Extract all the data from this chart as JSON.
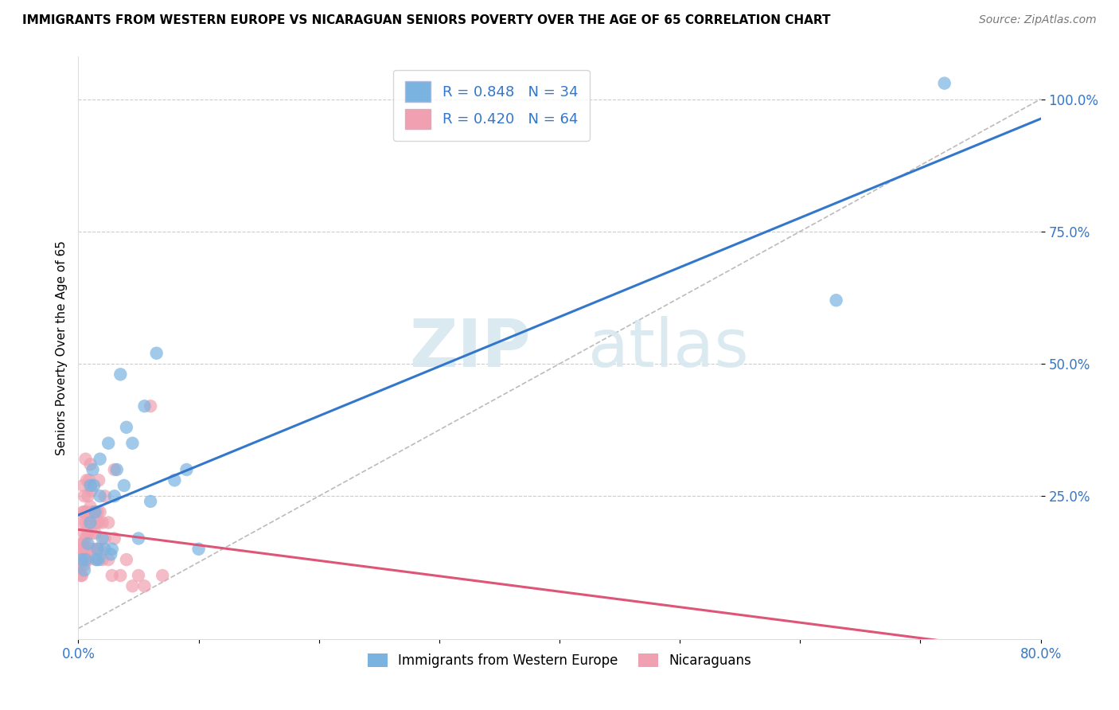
{
  "title": "IMMIGRANTS FROM WESTERN EUROPE VS NICARAGUAN SENIORS POVERTY OVER THE AGE OF 65 CORRELATION CHART",
  "source": "Source: ZipAtlas.com",
  "ylabel": "Seniors Poverty Over the Age of 65",
  "xlabel": "",
  "xlim": [
    0.0,
    0.8
  ],
  "ylim": [
    -0.02,
    1.08
  ],
  "xticks": [
    0.0,
    0.1,
    0.2,
    0.3,
    0.4,
    0.5,
    0.6,
    0.7,
    0.8
  ],
  "yticks": [
    0.25,
    0.5,
    0.75,
    1.0
  ],
  "ytick_labels": [
    "25.0%",
    "50.0%",
    "75.0%",
    "100.0%"
  ],
  "grid_color": "#cccccc",
  "watermark_zip": "ZIP",
  "watermark_atlas": "atlas",
  "blue_R": 0.848,
  "blue_N": 34,
  "pink_R": 0.42,
  "pink_N": 64,
  "blue_color": "#7ab3e0",
  "pink_color": "#f0a0b0",
  "blue_label": "Immigrants from Western Europe",
  "pink_label": "Nicaraguans",
  "blue_scatter": [
    [
      0.003,
      0.13
    ],
    [
      0.005,
      0.11
    ],
    [
      0.006,
      0.13
    ],
    [
      0.008,
      0.16
    ],
    [
      0.01,
      0.2
    ],
    [
      0.01,
      0.27
    ],
    [
      0.012,
      0.3
    ],
    [
      0.013,
      0.27
    ],
    [
      0.014,
      0.22
    ],
    [
      0.015,
      0.13
    ],
    [
      0.016,
      0.15
    ],
    [
      0.017,
      0.13
    ],
    [
      0.018,
      0.25
    ],
    [
      0.018,
      0.32
    ],
    [
      0.02,
      0.17
    ],
    [
      0.022,
      0.15
    ],
    [
      0.025,
      0.35
    ],
    [
      0.027,
      0.14
    ],
    [
      0.028,
      0.15
    ],
    [
      0.03,
      0.25
    ],
    [
      0.032,
      0.3
    ],
    [
      0.035,
      0.48
    ],
    [
      0.038,
      0.27
    ],
    [
      0.04,
      0.38
    ],
    [
      0.045,
      0.35
    ],
    [
      0.05,
      0.17
    ],
    [
      0.055,
      0.42
    ],
    [
      0.06,
      0.24
    ],
    [
      0.065,
      0.52
    ],
    [
      0.08,
      0.28
    ],
    [
      0.09,
      0.3
    ],
    [
      0.1,
      0.15
    ],
    [
      0.63,
      0.62
    ],
    [
      0.72,
      1.03
    ]
  ],
  "pink_scatter": [
    [
      0.0,
      0.12
    ],
    [
      0.001,
      0.13
    ],
    [
      0.001,
      0.15
    ],
    [
      0.002,
      0.1
    ],
    [
      0.002,
      0.12
    ],
    [
      0.002,
      0.15
    ],
    [
      0.003,
      0.1
    ],
    [
      0.003,
      0.13
    ],
    [
      0.003,
      0.16
    ],
    [
      0.003,
      0.2
    ],
    [
      0.004,
      0.13
    ],
    [
      0.004,
      0.16
    ],
    [
      0.004,
      0.22
    ],
    [
      0.004,
      0.27
    ],
    [
      0.005,
      0.12
    ],
    [
      0.005,
      0.15
    ],
    [
      0.005,
      0.18
    ],
    [
      0.005,
      0.22
    ],
    [
      0.005,
      0.25
    ],
    [
      0.006,
      0.13
    ],
    [
      0.006,
      0.17
    ],
    [
      0.006,
      0.2
    ],
    [
      0.006,
      0.32
    ],
    [
      0.007,
      0.14
    ],
    [
      0.007,
      0.22
    ],
    [
      0.007,
      0.28
    ],
    [
      0.008,
      0.13
    ],
    [
      0.008,
      0.18
    ],
    [
      0.008,
      0.25
    ],
    [
      0.009,
      0.2
    ],
    [
      0.009,
      0.28
    ],
    [
      0.01,
      0.15
    ],
    [
      0.01,
      0.23
    ],
    [
      0.01,
      0.31
    ],
    [
      0.011,
      0.18
    ],
    [
      0.011,
      0.26
    ],
    [
      0.012,
      0.15
    ],
    [
      0.012,
      0.22
    ],
    [
      0.013,
      0.22
    ],
    [
      0.014,
      0.18
    ],
    [
      0.015,
      0.13
    ],
    [
      0.015,
      0.2
    ],
    [
      0.016,
      0.15
    ],
    [
      0.016,
      0.22
    ],
    [
      0.017,
      0.2
    ],
    [
      0.017,
      0.28
    ],
    [
      0.018,
      0.15
    ],
    [
      0.018,
      0.22
    ],
    [
      0.02,
      0.13
    ],
    [
      0.02,
      0.2
    ],
    [
      0.022,
      0.17
    ],
    [
      0.022,
      0.25
    ],
    [
      0.025,
      0.13
    ],
    [
      0.025,
      0.2
    ],
    [
      0.028,
      0.1
    ],
    [
      0.03,
      0.17
    ],
    [
      0.03,
      0.3
    ],
    [
      0.035,
      0.1
    ],
    [
      0.04,
      0.13
    ],
    [
      0.045,
      0.08
    ],
    [
      0.05,
      0.1
    ],
    [
      0.055,
      0.08
    ],
    [
      0.06,
      0.42
    ],
    [
      0.07,
      0.1
    ]
  ],
  "blue_line_color": "#3377cc",
  "pink_line_color": "#dd5577",
  "dashed_line_color": "#bbbbbb"
}
